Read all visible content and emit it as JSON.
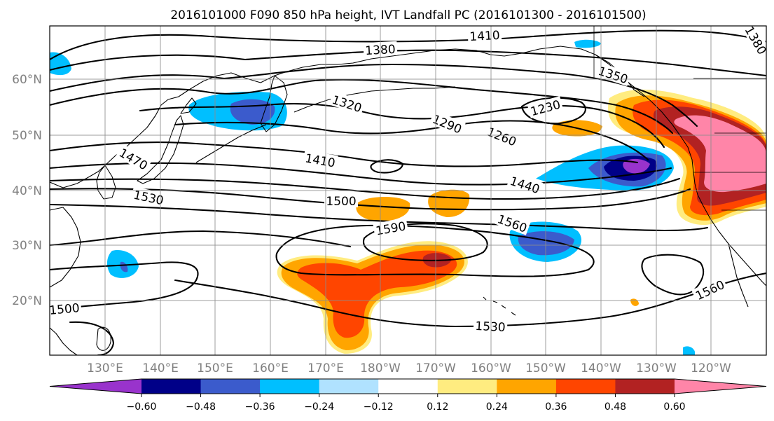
{
  "title": "2016101000 F090 850 hPa height, IVT Landfall PC (2016101300 - 2016101500)",
  "lat_labels": [
    "60°N",
    "50°N",
    "40°N",
    "30°N",
    "20°N"
  ],
  "lon_labels": [
    "130°E",
    "140°E",
    "150°E",
    "160°E",
    "170°E",
    "180°W",
    "170°W",
    "160°W",
    "150°W",
    "140°W",
    "130°W",
    "120°W"
  ],
  "contour_labels": [
    "1410",
    "1380",
    "1350",
    "1320",
    "1290",
    "1260",
    "1230",
    "1470",
    "1410",
    "1440",
    "1530",
    "1500",
    "1560",
    "1590",
    "1560",
    "1530",
    "1500",
    "1380"
  ],
  "colorbar": {
    "colors": [
      "#9933cc",
      "#000088",
      "#3b5bcc",
      "#00bfff",
      "#b0e2ff",
      "#ffffff",
      "#ffec80",
      "#ffa500",
      "#ff4500",
      "#b22222",
      "#ff85a8"
    ],
    "tick_labels": [
      "−0.60",
      "−0.48",
      "−0.36",
      "−0.24",
      "−0.12",
      "0.12",
      "0.24",
      "0.36",
      "0.48",
      "0.60"
    ]
  }
}
